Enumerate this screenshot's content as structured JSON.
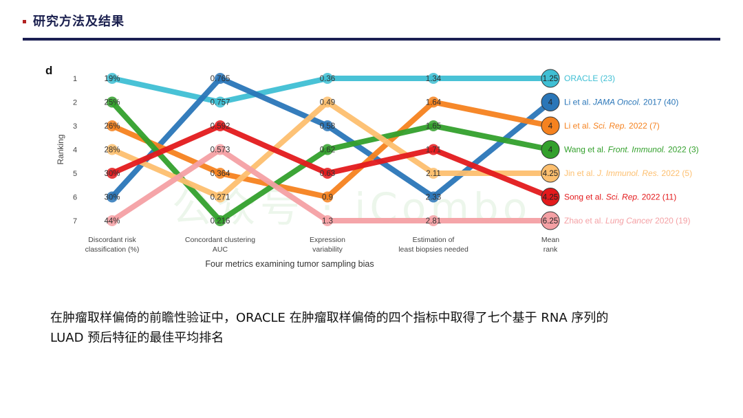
{
  "slide": {
    "title": "研究方法及结果",
    "accent_color": "#1b1f52",
    "bullet_color": "#b22222",
    "caption_line1": "在肿瘤取样偏倚的前瞻性验证中，ORACLE 在肿瘤取样偏倚的四个指标中取得了七个基于 RNA 序列的",
    "caption_line2": "LUAD 预后特征的最佳平均排名",
    "watermark": "公众号 · iCombo"
  },
  "chart_data": {
    "type": "line",
    "panel_label": "d",
    "title": "",
    "xlabel": "Four metrics examining tumor sampling bias",
    "ylabel": "Ranking",
    "y_ticks": [
      "1",
      "2",
      "3",
      "4",
      "5",
      "6",
      "7"
    ],
    "ylim": [
      1,
      7
    ],
    "y_inverted": true,
    "grid": false,
    "legend_position": "right (inline labels at mean rank column)",
    "categories": [
      "Discordant risk classification (%)",
      "Concordant clustering AUC",
      "Expression variability",
      "Estimation of least biopsies needed",
      "Mean rank"
    ],
    "category_lines": [
      [
        "Discordant risk",
        "classification (%)"
      ],
      [
        "Concordant clustering",
        "AUC"
      ],
      [
        "Expression",
        "variability"
      ],
      [
        "Estimation of",
        "least biopsies needed"
      ],
      [
        "Mean",
        "rank"
      ]
    ],
    "series": [
      {
        "name": "ORACLE (23)",
        "label_parts": [
          [
            "ORACLE (23)",
            false
          ]
        ],
        "color": "#3fbfd4",
        "ranks": [
          1,
          2,
          1,
          1,
          1
        ],
        "values": [
          "19%",
          "0.757",
          "0.36",
          "1.34",
          "1.25"
        ]
      },
      {
        "name": "Li et al. JAMA Oncol. 2017 (40)",
        "label_parts": [
          [
            "Li et al. ",
            false
          ],
          [
            "JAMA Oncol.",
            true
          ],
          [
            " 2017 (40)",
            false
          ]
        ],
        "color": "#2a76b8",
        "ranks": [
          6,
          1,
          3,
          6,
          2
        ],
        "values": [
          "30%",
          "0.765",
          "0.58",
          "2.33",
          "4"
        ]
      },
      {
        "name": "Li et al. Sci. Rep. 2022 (7)",
        "label_parts": [
          [
            "Li et al. ",
            false
          ],
          [
            "Sci. Rep.",
            true
          ],
          [
            " 2022 (7)",
            false
          ]
        ],
        "color": "#f5821f",
        "ranks": [
          3,
          5,
          6,
          2,
          3
        ],
        "values": [
          "26%",
          "0.364",
          "0.9",
          "1.64",
          "4"
        ]
      },
      {
        "name": "Wang et al. Front. Immunol. 2022 (3)",
        "label_parts": [
          [
            "Wang et al. ",
            false
          ],
          [
            "Front. Immunol.",
            true
          ],
          [
            " 2022 (3)",
            false
          ]
        ],
        "color": "#33a02c",
        "ranks": [
          2,
          7,
          4,
          3,
          4
        ],
        "values": [
          "25%",
          "0.216",
          "0.62",
          "1.65",
          "4"
        ]
      },
      {
        "name": "Jin et al. J. Immunol. Res. 2022 (5)",
        "label_parts": [
          [
            "Jin et al. ",
            false
          ],
          [
            "J. Immunol. Res.",
            true
          ],
          [
            " 2022 (5)",
            false
          ]
        ],
        "color": "#fdbf6f",
        "ranks": [
          4,
          6,
          2,
          5,
          5
        ],
        "values": [
          "28%",
          "0.271",
          "0.49",
          "2.11",
          "4.25"
        ]
      },
      {
        "name": "Song et al. Sci. Rep. 2022 (11)",
        "label_parts": [
          [
            "Song et al. ",
            false
          ],
          [
            "Sci. Rep.",
            true
          ],
          [
            " 2022 (11)",
            false
          ]
        ],
        "color": "#e31a1c",
        "ranks": [
          5,
          3,
          5,
          4,
          6
        ],
        "values": [
          "30%",
          "0.592",
          "0.63",
          "1.71",
          "4.25"
        ]
      },
      {
        "name": "Zhao et al. Lung Cancer 2020 (19)",
        "label_parts": [
          [
            "Zhao et al. ",
            false
          ],
          [
            "Lung Cancer",
            true
          ],
          [
            "  2020 (19)",
            false
          ]
        ],
        "color": "#f4a0a4",
        "ranks": [
          7,
          4,
          7,
          7,
          7
        ],
        "values": [
          "44%",
          "0.573",
          "1.3",
          "2.81",
          "6.25"
        ]
      }
    ],
    "mean_rank": {
      "ORACLE (23)": 1.25,
      "Li et al. JAMA Oncol. 2017 (40)": 4,
      "Li et al. Sci. Rep. 2022 (7)": 4,
      "Wang et al. Front. Immunol. 2022 (3)": 4,
      "Jin et al. J. Immunol. Res. 2022 (5)": 4.25,
      "Song et al. Sci. Rep. 2022 (11)": 4.25,
      "Zhao et al. Lung Cancer 2020 (19)": 6.25
    }
  }
}
